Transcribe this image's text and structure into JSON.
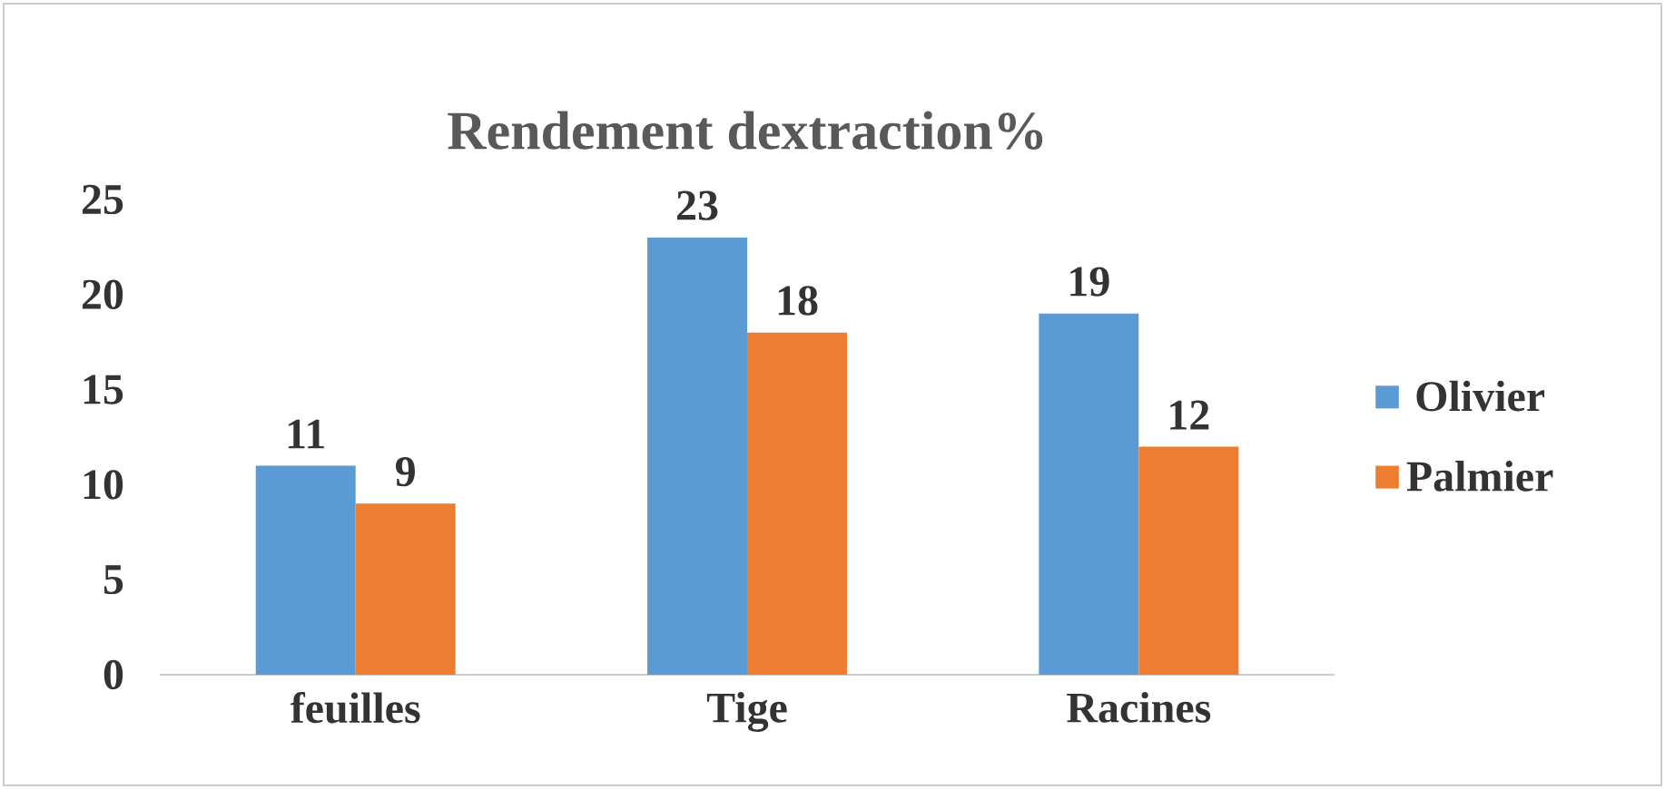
{
  "chart_data": {
    "type": "bar",
    "title": "Rendement dextraction%",
    "categories": [
      "feuilles",
      "Tige",
      "Racines"
    ],
    "series": [
      {
        "name": "Olivier",
        "color": "#5b9bd5",
        "values": [
          11,
          23,
          19
        ]
      },
      {
        "name": "Palmier",
        "color": "#ed7d31",
        "values": [
          9,
          18,
          12
        ]
      }
    ],
    "ylim": [
      0,
      25
    ],
    "yticks": [
      0,
      5,
      10,
      15,
      20,
      25
    ],
    "data_labels": true,
    "legend": "right",
    "grid": false
  }
}
